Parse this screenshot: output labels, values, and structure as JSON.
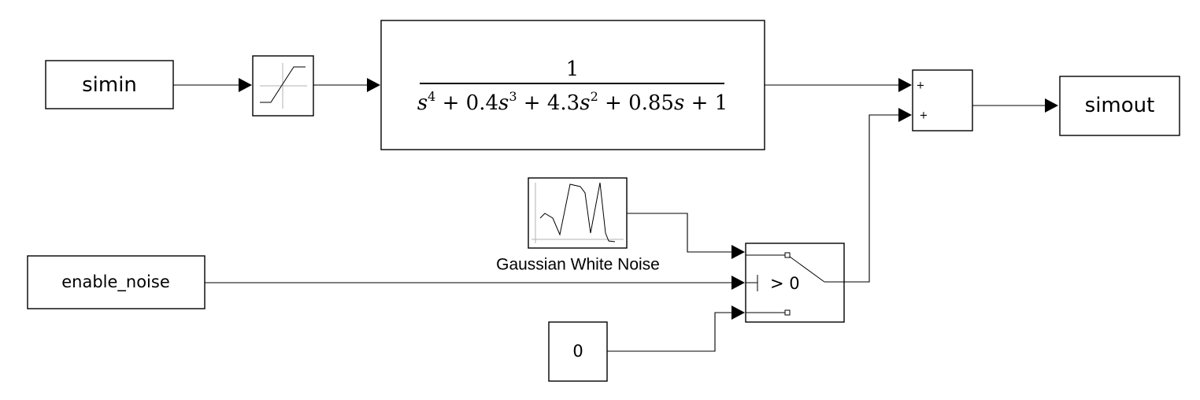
{
  "diagram": {
    "blocks": {
      "simin": {
        "label": "simin"
      },
      "saturation": {
        "icon": "saturation-icon"
      },
      "transfer_fcn": {
        "numerator": "1",
        "denominator": {
          "t1": "s",
          "e1": "4",
          "t2": " + 0.4",
          "t3": "s",
          "e3": "3",
          "t4": " + 4.3",
          "t5": "s",
          "e5": "2",
          "t6": " + 0.85",
          "t7": "s",
          "t8": " + 1"
        }
      },
      "sum": {
        "signs": [
          "+",
          "+"
        ]
      },
      "simout": {
        "label": "simout"
      },
      "noise": {
        "name": "Gaussian White Noise",
        "icon": "noise-signal-icon"
      },
      "enable_noise": {
        "label": "enable_noise"
      },
      "switch": {
        "criteria": "> 0",
        "icon": "switch-icon"
      },
      "constant": {
        "label": "0"
      }
    }
  }
}
